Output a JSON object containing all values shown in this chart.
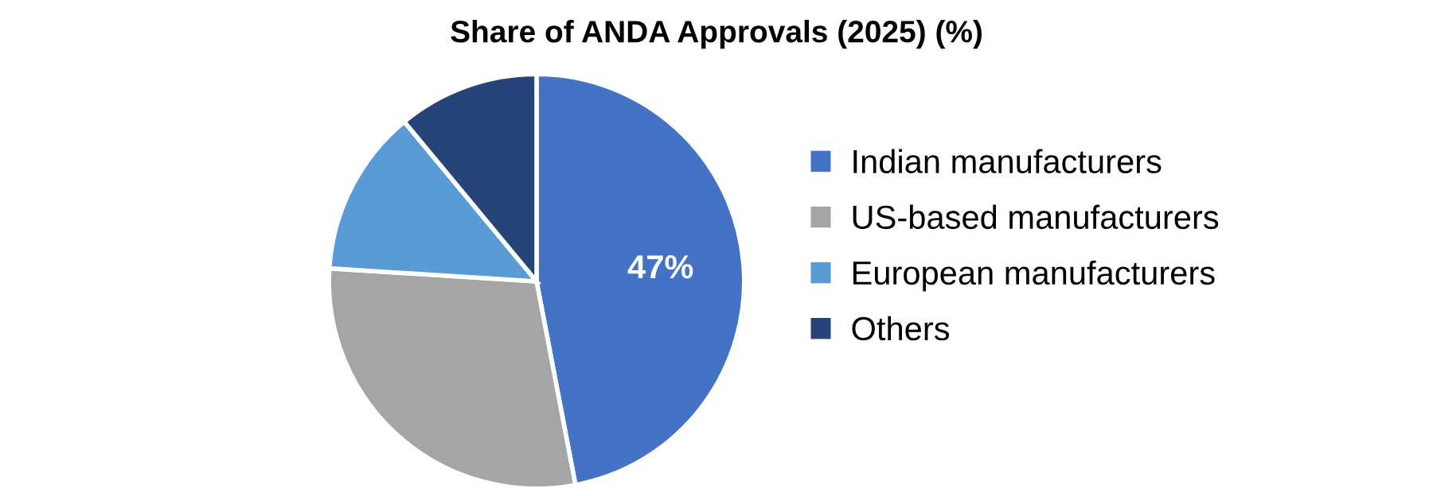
{
  "chart_data": {
    "type": "pie",
    "title": "Share of ANDA Approvals (2025) (%)",
    "categories": [
      "Indian manufacturers",
      "US-based manufacturers",
      "European manufacturers",
      "Others"
    ],
    "values": [
      47,
      29,
      13,
      11
    ],
    "colors": [
      "#4472c4",
      "#a5a5a5",
      "#5b9bd5",
      "#264478"
    ],
    "value_labels": [
      "47%",
      null,
      null,
      null
    ],
    "legend": "right"
  }
}
